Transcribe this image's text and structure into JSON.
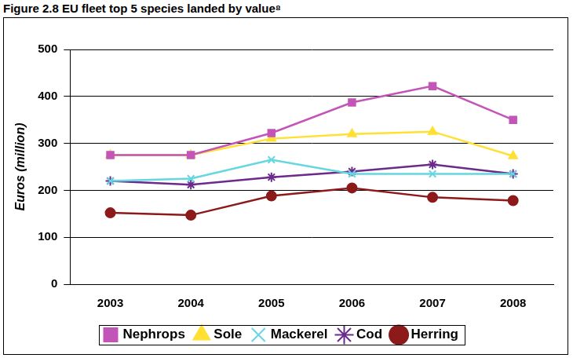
{
  "chart_data": {
    "type": "line",
    "title": "Figure 2.8 EU fleet top 5 species landed by value⁸",
    "y_label": "Euros (million)",
    "categories": [
      "2003",
      "2004",
      "2005",
      "2006",
      "2007",
      "2008"
    ],
    "series": [
      {
        "name": "Nephrops",
        "color": "#c455b8",
        "marker": "square",
        "values": [
          275,
          275,
          322,
          387,
          422,
          350
        ]
      },
      {
        "name": "Sole",
        "color": "#ffe033",
        "marker": "triangle",
        "values": [
          275,
          275,
          310,
          320,
          325,
          273
        ]
      },
      {
        "name": "Mackerel",
        "color": "#66d6e0",
        "marker": "x",
        "values": [
          220,
          225,
          265,
          235,
          235,
          235
        ]
      },
      {
        "name": "Cod",
        "color": "#6b2a8c",
        "marker": "star",
        "values": [
          220,
          212,
          228,
          240,
          255,
          235
        ]
      },
      {
        "name": "Herring",
        "color": "#8c1a1a",
        "marker": "circle",
        "values": [
          152,
          147,
          188,
          205,
          185,
          178
        ]
      }
    ],
    "ylim": [
      0,
      500
    ],
    "yticks": [
      0,
      100,
      200,
      300,
      400,
      500
    ],
    "grid": true,
    "legend": "bottom"
  }
}
